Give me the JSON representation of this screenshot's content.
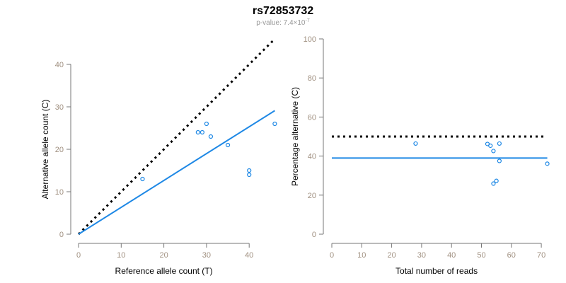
{
  "title": "rs72853732",
  "subtitle": {
    "prefix": "p-value: 7.4×10",
    "exponent": "-7"
  },
  "colors": {
    "points": "#1e88e5",
    "fit": "#1e88e5",
    "reference": "#000000",
    "tick": "#a09080",
    "axis": "#777777"
  },
  "chart_data": [
    {
      "type": "scatter",
      "xlabel": "Reference allele count (T)",
      "ylabel": "Alternative allele count (C)",
      "xlim": [
        0,
        46
      ],
      "ylim": [
        0,
        40
      ],
      "xticks": [
        0,
        10,
        20,
        30,
        40
      ],
      "yticks": [
        0,
        10,
        20,
        30,
        40
      ],
      "points": [
        [
          15,
          13
        ],
        [
          28,
          24
        ],
        [
          29,
          24
        ],
        [
          30,
          26
        ],
        [
          31,
          23
        ],
        [
          35,
          21
        ],
        [
          40,
          15
        ],
        [
          40,
          14
        ],
        [
          46,
          26
        ]
      ],
      "fit_line": {
        "style": "solid",
        "from": [
          0,
          0
        ],
        "to": [
          46,
          29.1
        ]
      },
      "reference_line": {
        "style": "dotted",
        "from": [
          0,
          0
        ],
        "to": [
          46,
          46
        ]
      }
    },
    {
      "type": "scatter",
      "xlabel": "Total number of reads",
      "ylabel": "Percentage alternative (C)",
      "xlim": [
        0,
        72
      ],
      "ylim": [
        0,
        100
      ],
      "xticks": [
        0,
        10,
        20,
        30,
        40,
        50,
        60,
        70
      ],
      "yticks": [
        0,
        20,
        40,
        60,
        80,
        100
      ],
      "points": [
        [
          28,
          46.4
        ],
        [
          52,
          46.2
        ],
        [
          53,
          45.3
        ],
        [
          56,
          46.4
        ],
        [
          54,
          42.6
        ],
        [
          56,
          37.5
        ],
        [
          55,
          27.3
        ],
        [
          54,
          25.9
        ],
        [
          72,
          36.1
        ]
      ],
      "fit_line": {
        "style": "solid",
        "from": [
          0,
          39
        ],
        "to": [
          72,
          39
        ]
      },
      "reference_line": {
        "style": "dotted",
        "from": [
          0,
          50
        ],
        "to": [
          71,
          50
        ]
      }
    }
  ]
}
